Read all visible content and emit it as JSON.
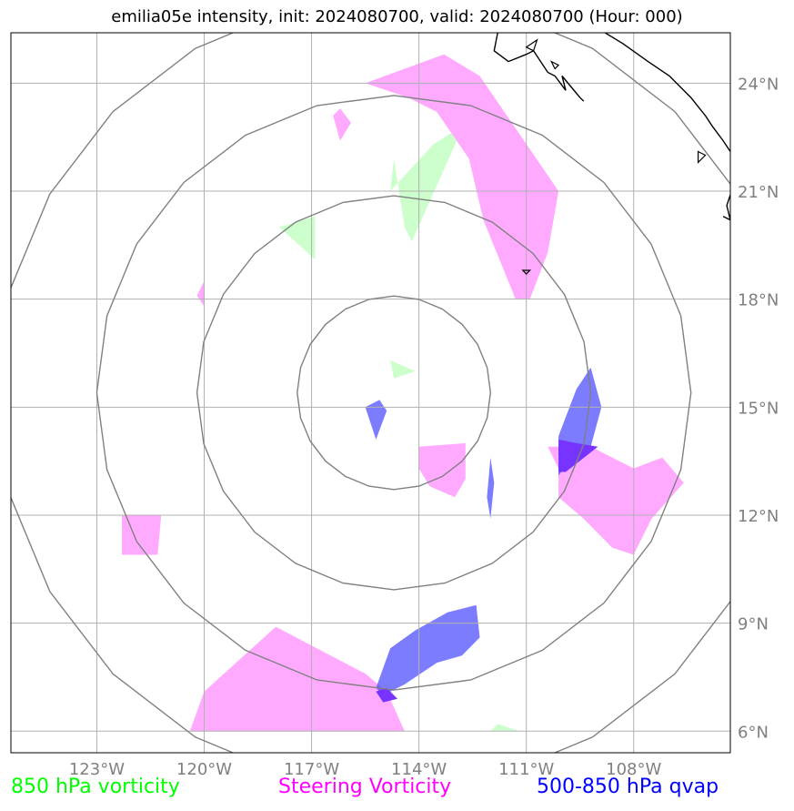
{
  "title": "emilia05e intensity, init: 2024080700, valid: 2024080700 (Hour: 000)",
  "map": {
    "lon_range": [
      -125.4,
      -105.3
    ],
    "lat_range": [
      5.4,
      25.4
    ],
    "lon_ticks": [
      {
        "value": -123,
        "label": "123°W"
      },
      {
        "value": -120,
        "label": "120°W"
      },
      {
        "value": -117,
        "label": "117°W"
      },
      {
        "value": -114,
        "label": "114°W"
      },
      {
        "value": -111,
        "label": "111°W"
      },
      {
        "value": -108,
        "label": "108°W"
      }
    ],
    "lat_ticks": [
      {
        "value": 6,
        "label": "6°N"
      },
      {
        "value": 9,
        "label": "9°N"
      },
      {
        "value": 12,
        "label": "12°N"
      },
      {
        "value": 15,
        "label": "15°N"
      },
      {
        "value": 18,
        "label": "18°N"
      },
      {
        "value": 21,
        "label": "21°N"
      },
      {
        "value": 24,
        "label": "24°N"
      }
    ],
    "grid": true,
    "colors": {
      "grid": "#b0b0b0",
      "ring": "#808080",
      "coast": "#000000",
      "vort850": "#ccffcc",
      "steering": "#ffaaff",
      "qvap": "#4444ff"
    },
    "storm_center": {
      "lon": -114.7,
      "lat": 15.4
    },
    "range_rings_deg": [
      2.7,
      5.5,
      8.3,
      11.1
    ],
    "fields": {
      "vort850": [
        [
          [
            -113.6,
            22.3
          ],
          [
            -112.5,
            23.0
          ],
          [
            -112.9,
            22.5
          ],
          [
            -114.2,
            19.6
          ],
          [
            -114.4,
            20.0
          ],
          [
            -114.7,
            21.9
          ],
          [
            -114.8,
            21.0
          ]
        ],
        [
          [
            -116.9,
            20.3
          ],
          [
            -117.9,
            20.0
          ],
          [
            -116.9,
            19.1
          ]
        ],
        [
          [
            -114.8,
            16.3
          ],
          [
            -114.1,
            16.0
          ],
          [
            -114.7,
            15.8
          ]
        ],
        [
          [
            -112.0,
            6.0
          ],
          [
            -111.2,
            6.0
          ],
          [
            -111.8,
            6.2
          ]
        ]
      ],
      "steering": [
        [
          [
            -115.5,
            24.0
          ],
          [
            -113.3,
            24.8
          ],
          [
            -112.3,
            24.2
          ],
          [
            -110.1,
            21.0
          ],
          [
            -110.4,
            19.3
          ],
          [
            -110.9,
            18.0
          ],
          [
            -111.3,
            18.0
          ],
          [
            -112.2,
            20.2
          ],
          [
            -112.6,
            21.9
          ],
          [
            -113.5,
            23.2
          ],
          [
            -114.3,
            23.6
          ]
        ],
        [
          [
            -116.4,
            23.1
          ],
          [
            -116.2,
            23.3
          ],
          [
            -115.9,
            22.9
          ],
          [
            -116.2,
            22.4
          ]
        ],
        [
          [
            -120.0,
            18.5
          ],
          [
            -120.0,
            17.8
          ],
          [
            -120.2,
            18.1
          ]
        ],
        [
          [
            -114.0,
            13.9
          ],
          [
            -112.7,
            14.0
          ],
          [
            -112.7,
            13.0
          ],
          [
            -113.0,
            12.5
          ],
          [
            -113.7,
            12.8
          ],
          [
            -114.0,
            13.3
          ]
        ],
        [
          [
            -110.4,
            13.9
          ],
          [
            -109.2,
            13.9
          ],
          [
            -108.0,
            13.3
          ],
          [
            -107.2,
            13.6
          ],
          [
            -106.6,
            12.9
          ],
          [
            -107.5,
            11.9
          ],
          [
            -108.0,
            10.9
          ],
          [
            -108.6,
            11.1
          ],
          [
            -109.4,
            11.9
          ],
          [
            -110.1,
            12.5
          ],
          [
            -110.1,
            13.3
          ]
        ],
        [
          [
            -122.3,
            12.0
          ],
          [
            -121.2,
            12.0
          ],
          [
            -121.3,
            10.9
          ],
          [
            -122.3,
            10.9
          ]
        ],
        [
          [
            -120.4,
            6.0
          ],
          [
            -120.0,
            7.1
          ],
          [
            -118.0,
            8.9
          ],
          [
            -115.7,
            7.7
          ],
          [
            -115.5,
            7.6
          ],
          [
            -114.9,
            7.1
          ],
          [
            -114.4,
            6.0
          ]
        ]
      ],
      "qvap": [
        [
          [
            -115.5,
            15.0
          ],
          [
            -115.1,
            15.2
          ],
          [
            -114.9,
            14.9
          ],
          [
            -115.2,
            14.1
          ]
        ],
        [
          [
            -109.2,
            16.1
          ],
          [
            -108.9,
            15.0
          ],
          [
            -109.2,
            13.9
          ],
          [
            -109.8,
            13.5
          ],
          [
            -110.1,
            13.1
          ],
          [
            -110.1,
            14.2
          ],
          [
            -109.6,
            15.5
          ]
        ],
        [
          [
            -112.0,
            13.6
          ],
          [
            -111.9,
            12.9
          ],
          [
            -112.0,
            11.9
          ],
          [
            -112.1,
            12.5
          ]
        ],
        [
          [
            -114.1,
            8.8
          ],
          [
            -113.2,
            9.3
          ],
          [
            -112.4,
            9.5
          ],
          [
            -112.3,
            8.6
          ],
          [
            -112.8,
            8.1
          ],
          [
            -113.5,
            7.9
          ],
          [
            -114.4,
            7.3
          ],
          [
            -115.0,
            7.0
          ],
          [
            -115.2,
            7.2
          ],
          [
            -114.8,
            8.3
          ]
        ]
      ],
      "overlap": [
        [
          [
            -110.1,
            14.1
          ],
          [
            -109.6,
            14.0
          ],
          [
            -109.0,
            13.9
          ],
          [
            -109.9,
            13.2
          ],
          [
            -110.1,
            13.2
          ]
        ],
        [
          [
            -115.2,
            7.1
          ],
          [
            -114.9,
            7.2
          ],
          [
            -114.6,
            6.9
          ],
          [
            -115.0,
            6.8
          ]
        ]
      ]
    },
    "coastlines": [
      [
        [
          -111.8,
          25.4
        ],
        [
          -111.9,
          24.9
        ],
        [
          -111.5,
          24.6
        ],
        [
          -111.0,
          24.8
        ],
        [
          -110.8,
          24.9
        ],
        [
          -110.4,
          24.3
        ],
        [
          -110.2,
          24.2
        ],
        [
          -109.9,
          23.8
        ],
        [
          -110.0,
          24.2
        ],
        [
          -109.5,
          23.6
        ],
        [
          -109.4,
          23.5
        ]
      ],
      [
        [
          -108.8,
          25.4
        ],
        [
          -108.3,
          25.1
        ],
        [
          -107.6,
          24.6
        ],
        [
          -107.0,
          24.2
        ],
        [
          -106.4,
          23.6
        ],
        [
          -106.0,
          23.1
        ],
        [
          -105.8,
          22.8
        ],
        [
          -105.5,
          22.4
        ],
        [
          -105.3,
          22.1
        ]
      ],
      [
        [
          -105.5,
          20.3
        ],
        [
          -105.3,
          20.2
        ],
        [
          -105.4,
          20.6
        ],
        [
          -105.3,
          20.9
        ]
      ]
    ],
    "islands": [
      [
        [
          -110.3,
          24.6
        ],
        [
          -110.1,
          24.5
        ],
        [
          -110.2,
          24.4
        ]
      ],
      [
        [
          -111.0,
          25.0
        ],
        [
          -110.8,
          24.9
        ],
        [
          -110.7,
          25.2
        ]
      ],
      [
        [
          -106.2,
          22.1
        ],
        [
          -106.0,
          22.0
        ],
        [
          -106.2,
          21.8
        ]
      ],
      [
        [
          -111.1,
          18.8
        ],
        [
          -110.9,
          18.8
        ],
        [
          -111.0,
          18.7
        ]
      ]
    ]
  },
  "legend": {
    "vort850": {
      "label": "850 hPa vorticity",
      "color": "#00ff00"
    },
    "steering": {
      "label": "Steering Vorticity",
      "color": "#ff00ff"
    },
    "qvap": {
      "label": "500-850 hPa qvap",
      "color": "#0000ff"
    }
  }
}
